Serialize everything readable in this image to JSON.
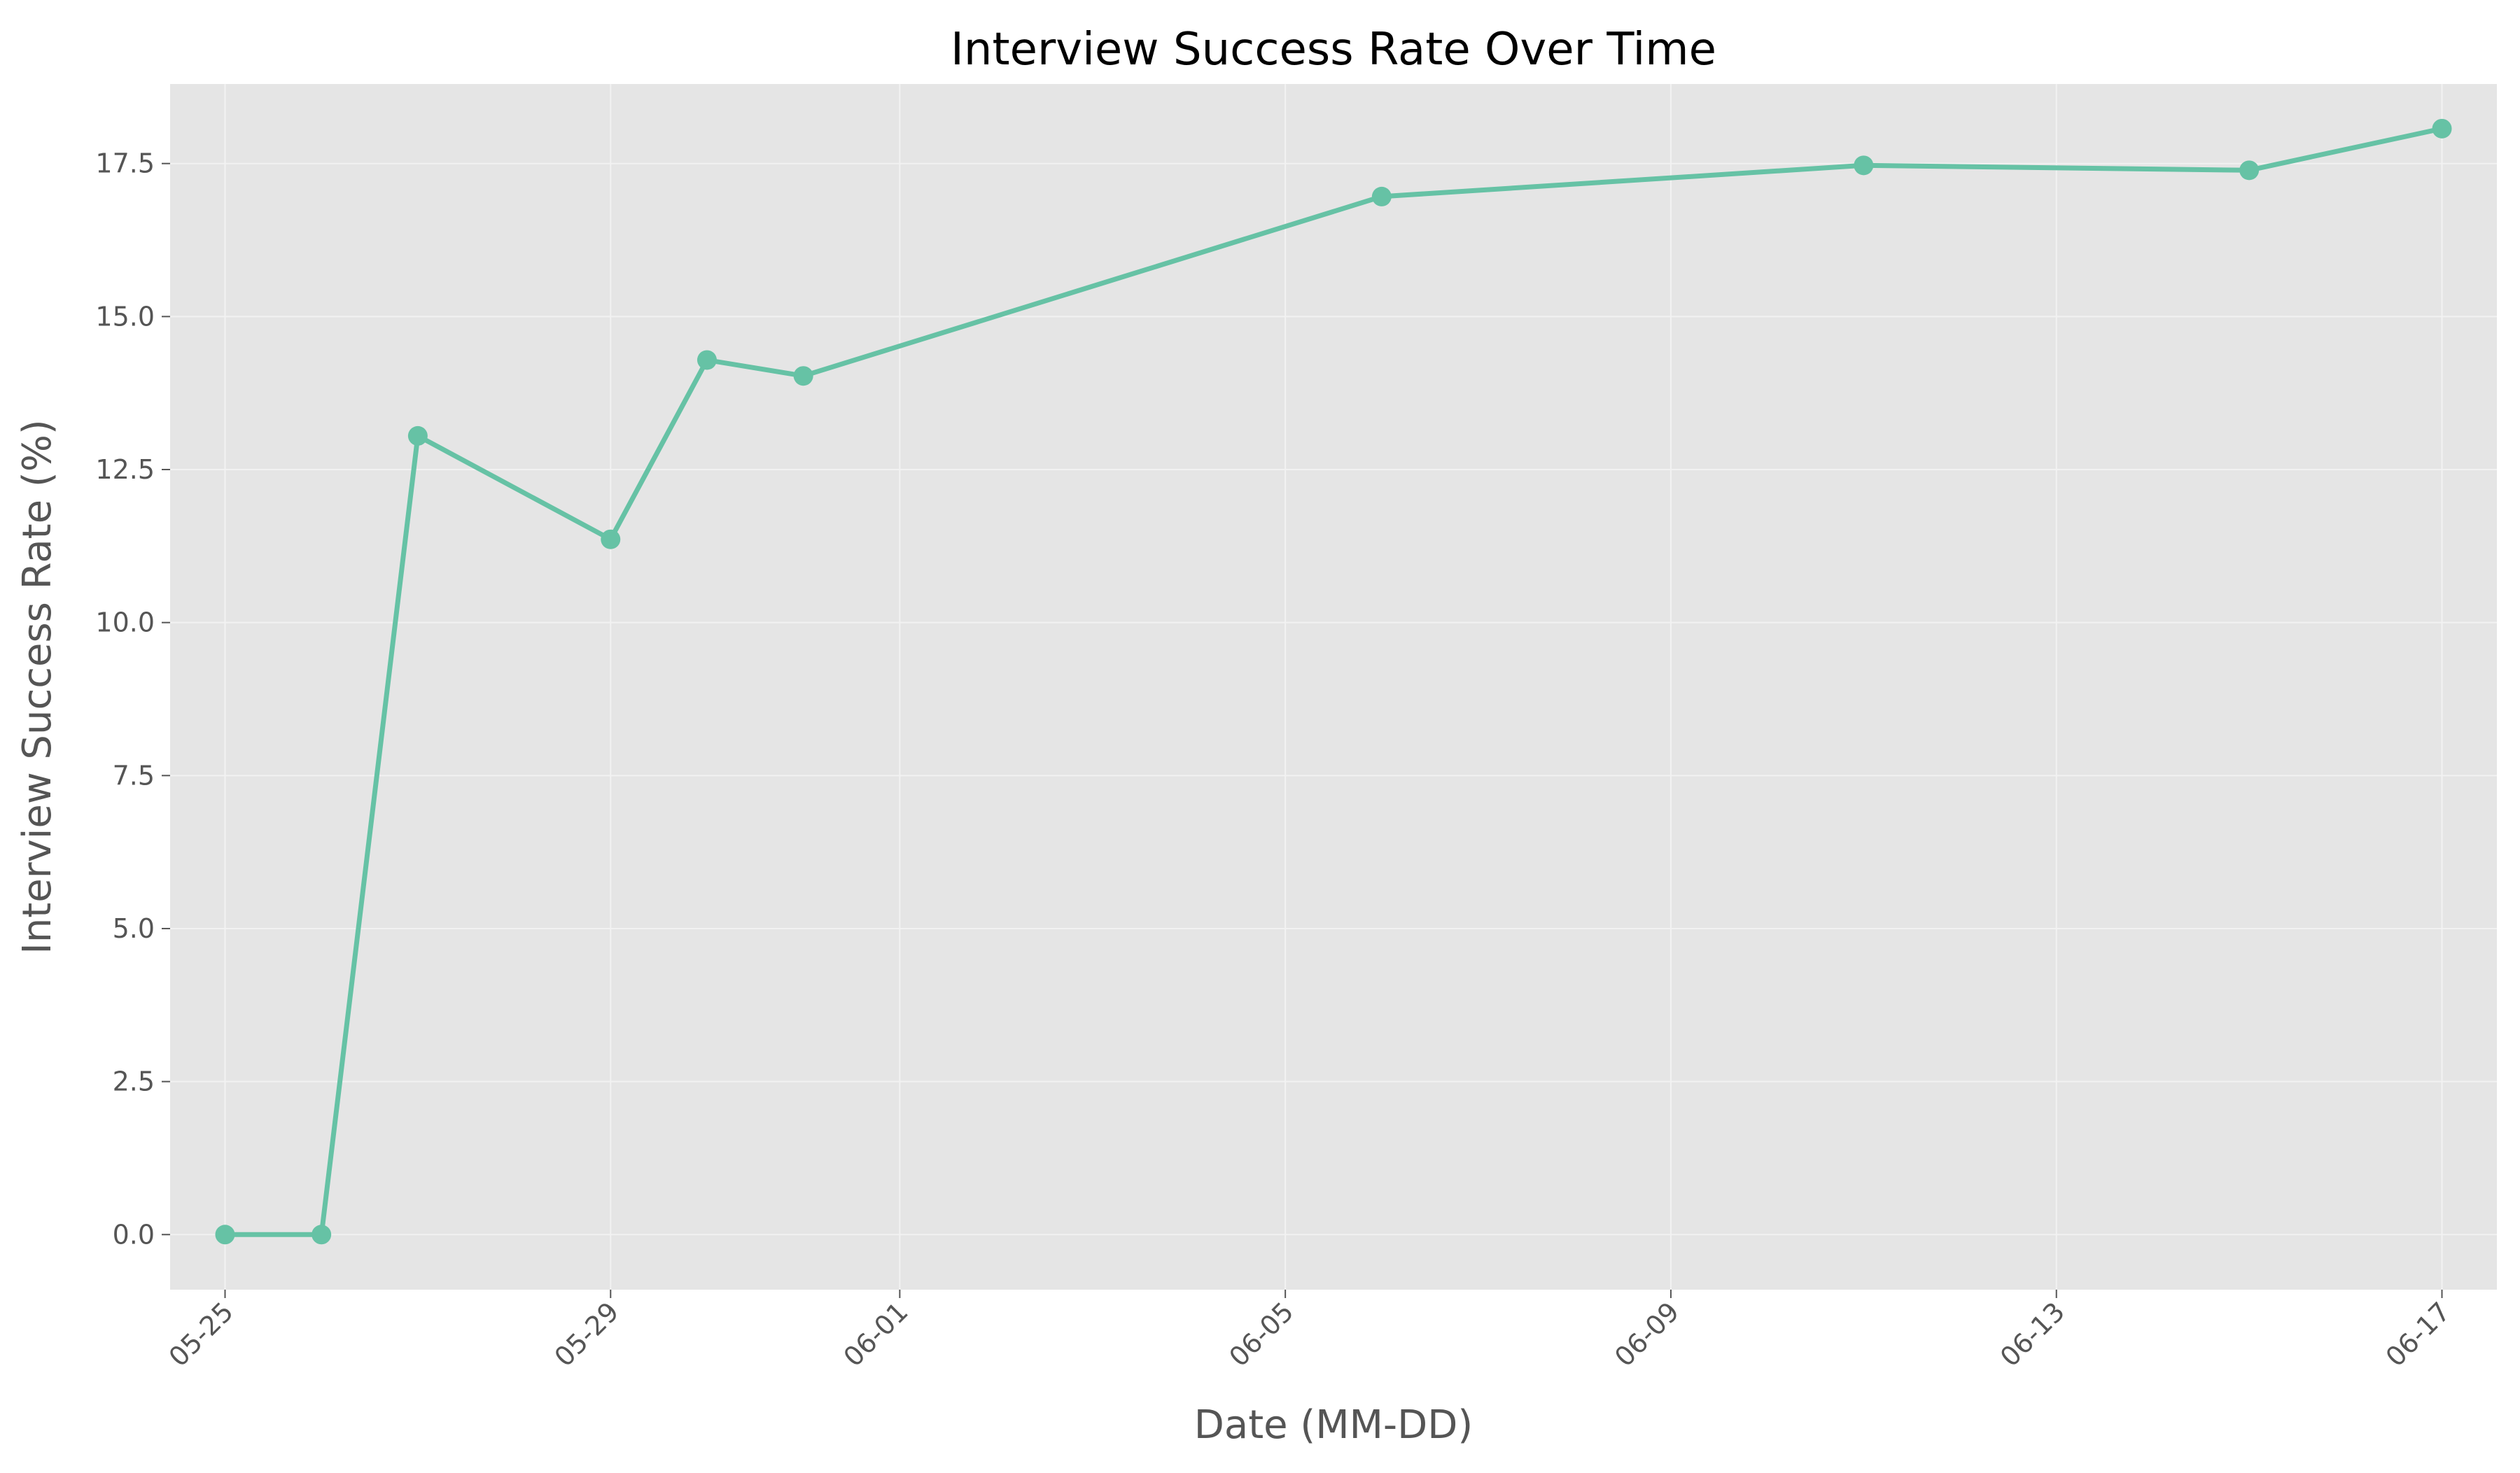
{
  "chart_data": {
    "type": "line",
    "title": "Interview Success Rate Over Time",
    "xlabel": "Date (MM-DD)",
    "ylabel": "Interview Success Rate (%)",
    "x_ticks": [
      "05-25",
      "05-29",
      "06-01",
      "06-05",
      "06-09",
      "06-13",
      "06-17"
    ],
    "y_ticks": [
      "0.0",
      "2.5",
      "5.0",
      "7.5",
      "10.0",
      "12.5",
      "15.0",
      "17.5"
    ],
    "ylim": [
      -0.9,
      18.8
    ],
    "xlim": [
      "05-24",
      "06-17"
    ],
    "grid": true,
    "series": [
      {
        "color": "#66c2a5",
        "points": [
          {
            "x": "05-25",
            "y": 0.0
          },
          {
            "x": "05-26",
            "y": 0.0
          },
          {
            "x": "05-27",
            "y": 13.05
          },
          {
            "x": "05-29",
            "y": 11.36
          },
          {
            "x": "05-30",
            "y": 14.29
          },
          {
            "x": "05-31",
            "y": 14.03
          },
          {
            "x": "06-06",
            "y": 16.96
          },
          {
            "x": "06-11",
            "y": 17.47
          },
          {
            "x": "06-15",
            "y": 17.39
          },
          {
            "x": "06-17",
            "y": 18.07
          }
        ]
      }
    ],
    "colors": {
      "plot_background": "#e5e5e5",
      "grid": "#f2f2f2",
      "line": "#66c2a5",
      "tick_text": "#555555"
    }
  }
}
